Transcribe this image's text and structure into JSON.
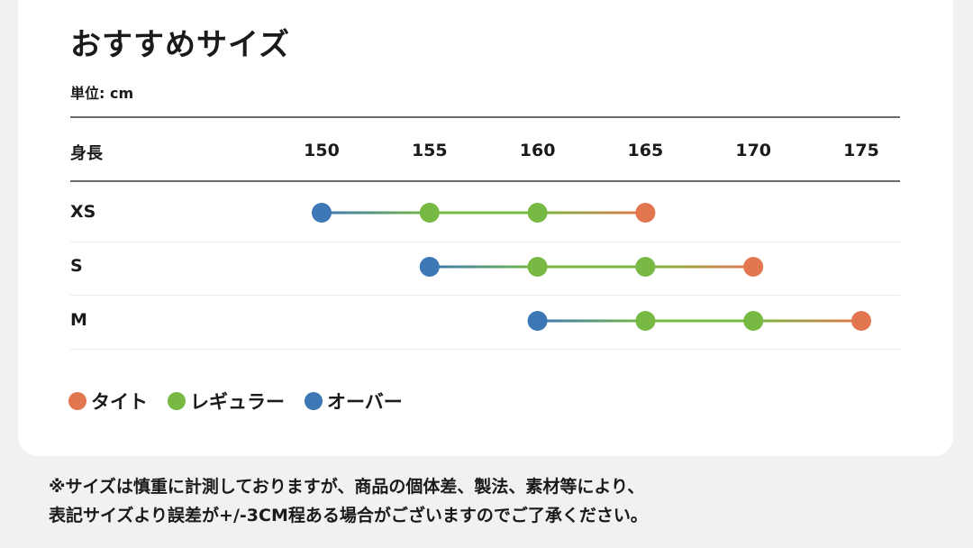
{
  "title": "おすすめサイズ",
  "unit": "単位: cm",
  "header_label": "身長",
  "notes": [
    "※サイズは慎重に計測しておりますが、商品の個体差、製法、素材等により、",
    "表記サイズより誤差が+/-3CM程ある場合がございますのでご了承ください。"
  ],
  "chart_data": {
    "type": "scatter",
    "xlabel": "身長",
    "x_ticks": [
      150,
      155,
      160,
      165,
      170,
      175
    ],
    "xlim": [
      150,
      175
    ],
    "sizes": [
      {
        "label": "XS",
        "points": [
          {
            "x": 150,
            "fit": "over"
          },
          {
            "x": 155,
            "fit": "regular"
          },
          {
            "x": 160,
            "fit": "regular"
          },
          {
            "x": 165,
            "fit": "tight"
          }
        ]
      },
      {
        "label": "S",
        "points": [
          {
            "x": 155,
            "fit": "over"
          },
          {
            "x": 160,
            "fit": "regular"
          },
          {
            "x": 165,
            "fit": "regular"
          },
          {
            "x": 170,
            "fit": "tight"
          }
        ]
      },
      {
        "label": "M",
        "points": [
          {
            "x": 160,
            "fit": "over"
          },
          {
            "x": 165,
            "fit": "regular"
          },
          {
            "x": 170,
            "fit": "regular"
          },
          {
            "x": 175,
            "fit": "tight"
          }
        ]
      }
    ],
    "legend": [
      {
        "key": "tight",
        "name": "タイト",
        "color": "#e2764e"
      },
      {
        "key": "regular",
        "name": "レギュラー",
        "color": "#78b943"
      },
      {
        "key": "over",
        "name": "オーバー",
        "color": "#3d77b6"
      }
    ],
    "legend_position": "bottom-left"
  }
}
